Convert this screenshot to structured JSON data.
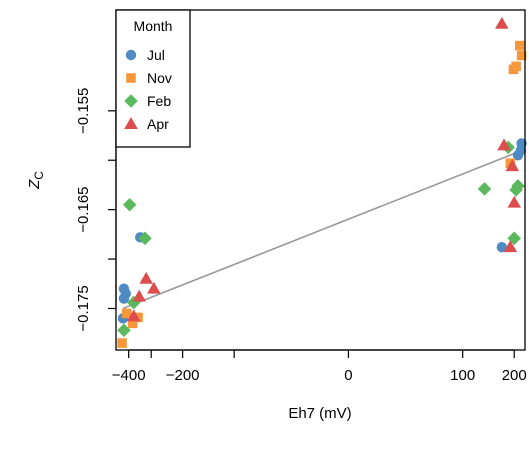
{
  "chart_data": {
    "type": "scatter",
    "xlabel": "Eh7 (mV)",
    "ylabel": "Z",
    "ylabel_subscript": "C",
    "x_ticks": [
      -400,
      -200,
      0,
      100,
      200
    ],
    "x_tick_labels": [
      "−400",
      "−200",
      "0",
      "100",
      "200"
    ],
    "y_ticks": [
      -0.155,
      -0.165,
      -0.175
    ],
    "y_tick_labels": [
      "−0.155",
      "−0.165",
      "−0.175"
    ],
    "x_scale": "asinh",
    "xlim": [
      -470,
      230
    ],
    "ylim": [
      -0.1792,
      -0.1448
    ],
    "grid": false,
    "legend": {
      "title": "Month",
      "position": "top-left",
      "entries": [
        {
          "label": "Jul",
          "color": "#4e8ac4",
          "marker": "circle"
        },
        {
          "label": "Nov",
          "color": "#f5973a",
          "marker": "square"
        },
        {
          "label": "Feb",
          "color": "#5cb85c",
          "marker": "diamond"
        },
        {
          "label": "Apr",
          "color": "#de4d4d",
          "marker": "triangle"
        }
      ]
    },
    "series": [
      {
        "name": "Jul",
        "points": [
          [
            -430,
            -0.176
          ],
          [
            -425,
            -0.174
          ],
          [
            -425,
            -0.173
          ],
          [
            -415,
            -0.1735
          ],
          [
            -345,
            -0.1678
          ],
          [
            170,
            -0.1688
          ],
          [
            210,
            -0.1595
          ],
          [
            218,
            -0.159
          ],
          [
            220,
            -0.1583
          ]
        ]
      },
      {
        "name": "Nov",
        "points": [
          [
            -435,
            -0.1785
          ],
          [
            -410,
            -0.1755
          ],
          [
            -380,
            -0.1765
          ],
          [
            -355,
            -0.1759
          ],
          [
            190,
            -0.1603
          ],
          [
            198,
            -0.1508
          ],
          [
            205,
            -0.1505
          ],
          [
            215,
            -0.1484
          ],
          [
            220,
            -0.1494
          ]
        ]
      },
      {
        "name": "Feb",
        "points": [
          [
            -425,
            -0.1772
          ],
          [
            -395,
            -0.1645
          ],
          [
            -375,
            -0.1744
          ],
          [
            -325,
            -0.1679
          ],
          [
            135,
            -0.1629
          ],
          [
            185,
            -0.1587
          ],
          [
            200,
            -0.1679
          ],
          [
            205,
            -0.163
          ],
          [
            210,
            -0.1626
          ]
        ]
      },
      {
        "name": "Apr",
        "points": [
          [
            -375,
            -0.1758
          ],
          [
            -350,
            -0.1738
          ],
          [
            -320,
            -0.172
          ],
          [
            -290,
            -0.173
          ],
          [
            170,
            -0.1462
          ],
          [
            175,
            -0.1585
          ],
          [
            190,
            -0.1688
          ],
          [
            195,
            -0.1606
          ],
          [
            200,
            -0.1643
          ]
        ]
      }
    ],
    "fit_line": {
      "color": "#999999",
      "x": [
        -430,
        222
      ],
      "y": [
        -0.175,
        -0.159
      ]
    }
  }
}
